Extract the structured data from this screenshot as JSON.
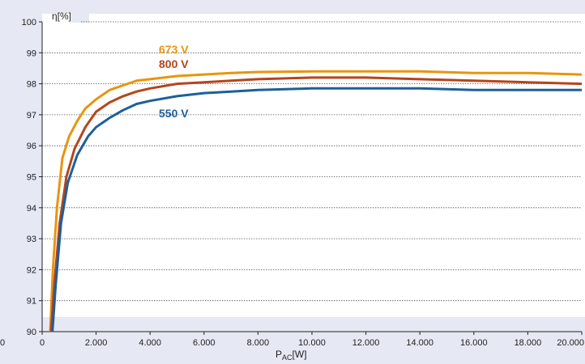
{
  "chart_data": {
    "type": "line",
    "ylabel": "η[%]",
    "xlabel_main": "P",
    "xlabel_sub": "AC",
    "xlabel_unit": "[W]",
    "xlim": [
      0,
      20000
    ],
    "ylim": [
      90,
      100
    ],
    "x_ticks": [
      "0",
      "2.000",
      "4.000",
      "6.000",
      "8.000",
      "10.000",
      "12.000",
      "14.000",
      "16.000",
      "18.000",
      "20.000"
    ],
    "y_ticks": [
      "90",
      "91",
      "92",
      "93",
      "94",
      "95",
      "96",
      "97",
      "98",
      "99",
      "100"
    ],
    "grid": "horizontal dotted",
    "left_edge_label": "0",
    "series": [
      {
        "name": "673 V",
        "color": "#e8950f",
        "points": [
          [
            300,
            90
          ],
          [
            400,
            92
          ],
          [
            550,
            94
          ],
          [
            750,
            95.6
          ],
          [
            1000,
            96.3
          ],
          [
            1300,
            96.8
          ],
          [
            1600,
            97.2
          ],
          [
            2000,
            97.5
          ],
          [
            2500,
            97.8
          ],
          [
            3000,
            97.95
          ],
          [
            3500,
            98.1
          ],
          [
            4000,
            98.15
          ],
          [
            5000,
            98.25
          ],
          [
            6000,
            98.3
          ],
          [
            7000,
            98.35
          ],
          [
            8000,
            98.38
          ],
          [
            10000,
            98.4
          ],
          [
            12000,
            98.4
          ],
          [
            14000,
            98.4
          ],
          [
            16000,
            98.35
          ],
          [
            18000,
            98.35
          ],
          [
            20000,
            98.3
          ]
        ]
      },
      {
        "name": "800 V",
        "color": "#b5451b",
        "points": [
          [
            330,
            90
          ],
          [
            450,
            91.5
          ],
          [
            650,
            93.5
          ],
          [
            900,
            95
          ],
          [
            1200,
            95.9
          ],
          [
            1600,
            96.6
          ],
          [
            2000,
            97.1
          ],
          [
            2500,
            97.4
          ],
          [
            3000,
            97.6
          ],
          [
            3500,
            97.75
          ],
          [
            4000,
            97.85
          ],
          [
            5000,
            98
          ],
          [
            6000,
            98.05
          ],
          [
            7000,
            98.1
          ],
          [
            8000,
            98.15
          ],
          [
            10000,
            98.2
          ],
          [
            12000,
            98.2
          ],
          [
            14000,
            98.15
          ],
          [
            16000,
            98.1
          ],
          [
            18000,
            98.05
          ],
          [
            20000,
            98
          ]
        ]
      },
      {
        "name": "550 V",
        "color": "#1d5f9b",
        "points": [
          [
            380,
            90
          ],
          [
            500,
            91.5
          ],
          [
            700,
            93.5
          ],
          [
            950,
            94.8
          ],
          [
            1300,
            95.7
          ],
          [
            1700,
            96.3
          ],
          [
            2000,
            96.6
          ],
          [
            2500,
            96.9
          ],
          [
            3000,
            97.15
          ],
          [
            3500,
            97.35
          ],
          [
            4000,
            97.45
          ],
          [
            5000,
            97.6
          ],
          [
            6000,
            97.7
          ],
          [
            7000,
            97.75
          ],
          [
            8000,
            97.8
          ],
          [
            10000,
            97.85
          ],
          [
            12000,
            97.85
          ],
          [
            14000,
            97.85
          ],
          [
            16000,
            97.8
          ],
          [
            18000,
            97.8
          ],
          [
            20000,
            97.8
          ]
        ]
      }
    ]
  }
}
